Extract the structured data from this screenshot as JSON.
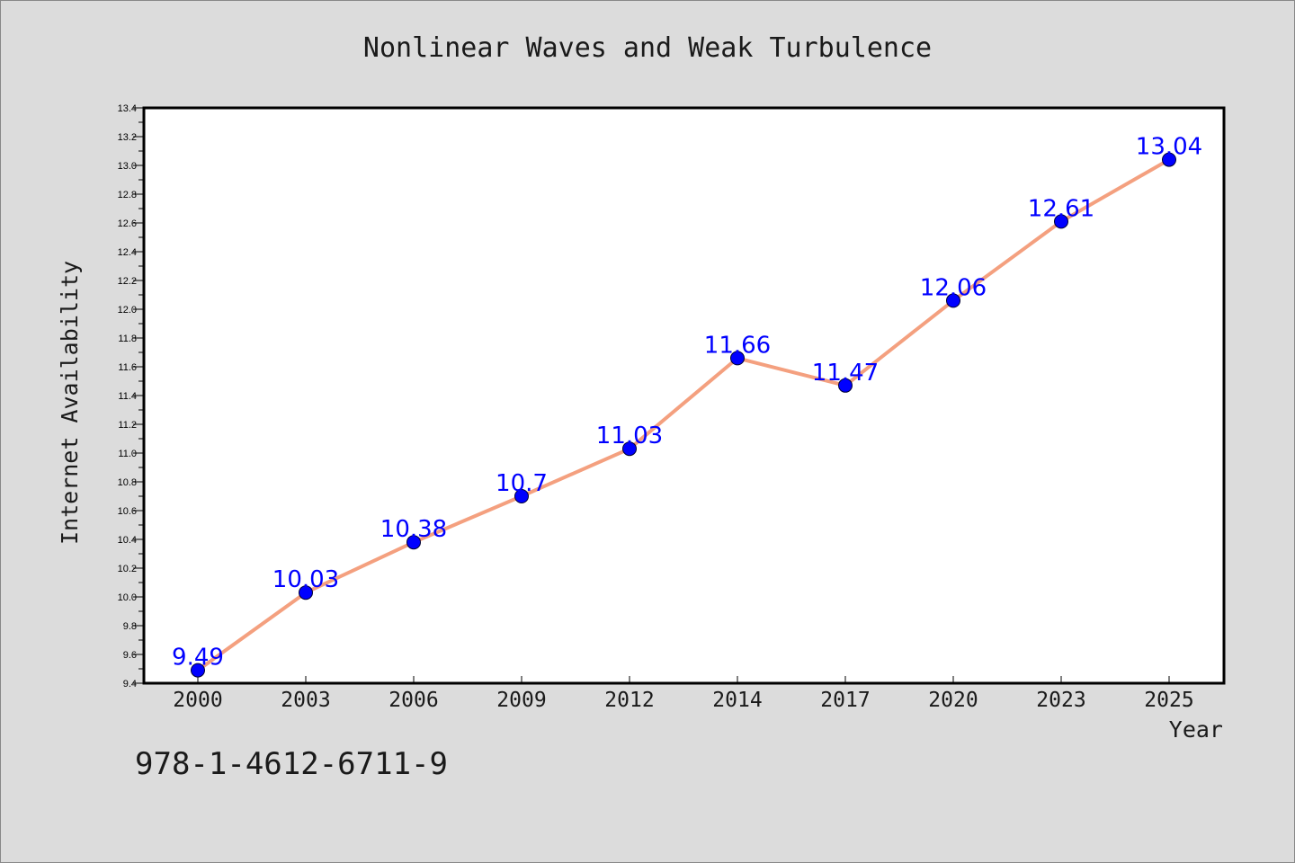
{
  "isbn": "978-1-4612-6711-9",
  "chart_data": {
    "type": "line",
    "title": "Nonlinear Waves and Weak Turbulence",
    "xlabel": "Year",
    "ylabel": "Internet Availability",
    "categories": [
      "2000",
      "2003",
      "2006",
      "2009",
      "2012",
      "2014",
      "2017",
      "2020",
      "2023",
      "2025"
    ],
    "values": [
      9.49,
      10.03,
      10.38,
      10.7,
      11.03,
      11.66,
      11.47,
      12.06,
      12.61,
      13.04
    ],
    "data_labels": [
      "9.49",
      "10.03",
      "10.38",
      "10.7",
      "11.03",
      "11.66",
      "11.47",
      "12.06",
      "12.61",
      "13.04"
    ],
    "ylim": [
      9.4,
      13.4
    ],
    "yticks": [
      "9.4",
      "9.6",
      "9.8",
      "10.0",
      "10.2",
      "10.4",
      "10.6",
      "10.8",
      "11.0",
      "11.2",
      "11.4",
      "11.6",
      "11.8",
      "12.0",
      "12.2",
      "12.4",
      "12.6",
      "12.8",
      "13.0",
      "13.2",
      "13.4"
    ],
    "grid": false,
    "colors": {
      "line": "#f4a07f",
      "marker": "#0000ff",
      "label": "#0000ff",
      "background": "#dcdcdc",
      "plot_area": "#ffffff"
    }
  }
}
